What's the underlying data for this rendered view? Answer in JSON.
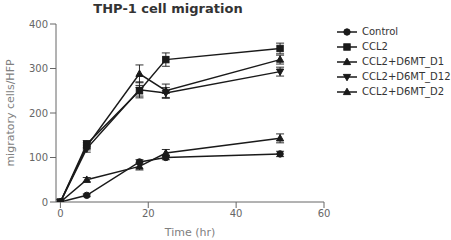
{
  "chart_data": {
    "type": "line",
    "title": "THP-1 cell migration",
    "x_label": "Time (hr)",
    "y_label": "migratory cells/HFP",
    "x": [
      0,
      6,
      18,
      24,
      50
    ],
    "series": [
      {
        "name": "Control",
        "values": [
          0,
          15,
          90,
          100,
          108
        ],
        "yerr": [
          0,
          3,
          5,
          5,
          6
        ],
        "marker": "circle"
      },
      {
        "name": "CCL2",
        "values": [
          0,
          130,
          250,
          320,
          345
        ],
        "yerr": [
          0,
          8,
          12,
          15,
          12
        ],
        "marker": "square"
      },
      {
        "name": "CCL2+D6MT_D1",
        "values": [
          0,
          125,
          288,
          250,
          320
        ],
        "yerr": [
          0,
          8,
          20,
          15,
          10
        ],
        "marker": "triangle-up"
      },
      {
        "name": "CCL2+D6MT_D12",
        "values": [
          0,
          120,
          252,
          245,
          293
        ],
        "yerr": [
          0,
          8,
          18,
          12,
          10
        ],
        "marker": "triangle-down"
      },
      {
        "name": "CCL2+D6MT_D2",
        "values": [
          0,
          50,
          80,
          110,
          143
        ],
        "yerr": [
          0,
          5,
          8,
          8,
          10
        ],
        "marker": "triangle-up"
      }
    ],
    "color": "#1a1a1a",
    "xlim": [
      -1,
      60
    ],
    "ylim": [
      0,
      400
    ],
    "xticks": [
      0,
      20,
      40,
      60
    ],
    "yticks": [
      0,
      100,
      200,
      300,
      400
    ],
    "grid": false,
    "legend": "right"
  }
}
